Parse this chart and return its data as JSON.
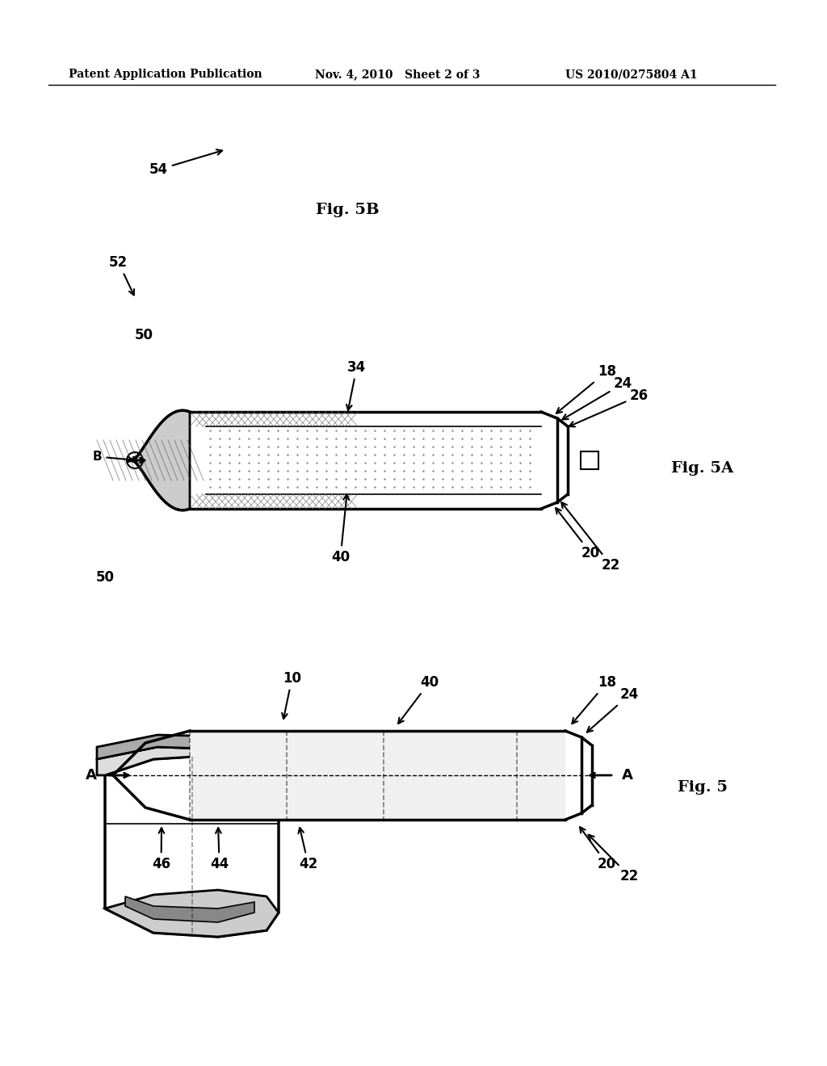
{
  "bg_color": "#ffffff",
  "header_left": "Patent Application Publication",
  "header_mid": "Nov. 4, 2010   Sheet 2 of 3",
  "header_right": "US 2010/0275804 A1",
  "fig5b_label": "Fig. 5B",
  "fig5a_label": "Fig. 5A",
  "fig5_label": "Fig. 5",
  "header_font_size": 10,
  "label_font_size": 13
}
